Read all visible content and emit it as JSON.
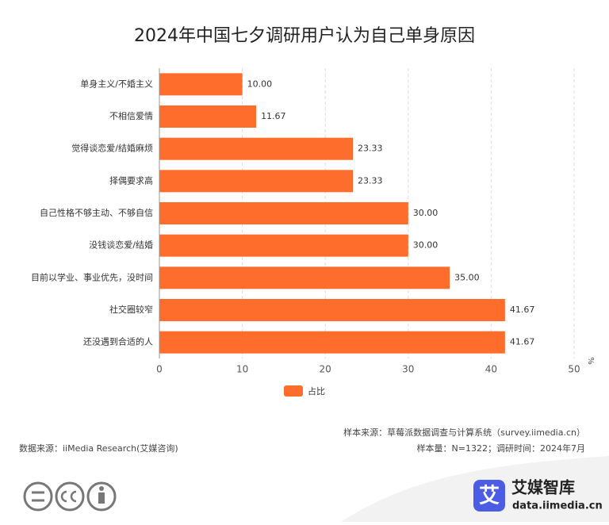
{
  "chart_data": {
    "type": "bar",
    "orientation": "horizontal",
    "title": "2024年中国七夕调研用户认为自己单身原因",
    "categories": [
      "单身主义/不婚主义",
      "不相信爱情",
      "觉得谈恋爱/结婚麻烦",
      "择偶要求高",
      "自己性格不够主动、不够自信",
      "没钱谈恋爱/结婚",
      "目前以学业、事业优先，没时间",
      "社交圈较窄",
      "还没遇到合适的人"
    ],
    "series": [
      {
        "name": "占比",
        "color": "#ff6d2d",
        "values": [
          10,
          11.67,
          23.33,
          23.33,
          30,
          30,
          35,
          41.67,
          41.67
        ],
        "value_labels": [
          "10.00",
          "11.67",
          "23.33",
          "23.33",
          "30.00",
          "30.00",
          "35.00",
          "41.67",
          "41.67"
        ]
      }
    ],
    "xlim": [
      0,
      50
    ],
    "xticks": [
      0,
      10,
      20,
      30,
      40,
      50
    ],
    "x_unit": "%",
    "grid": true,
    "legend": "bottom"
  },
  "footer": {
    "sample_source": "样本来源：草莓派数据调查与计算系统（survey.iimedia.cn）",
    "data_source": "数据来源：iiMedia Research(艾媒咨询)",
    "sample_size": "样本量：N=1322；调研时间：2024年7月"
  },
  "logo": {
    "icon": "艾",
    "name": "艾媒智库",
    "url": "data.iimedia.cn"
  }
}
